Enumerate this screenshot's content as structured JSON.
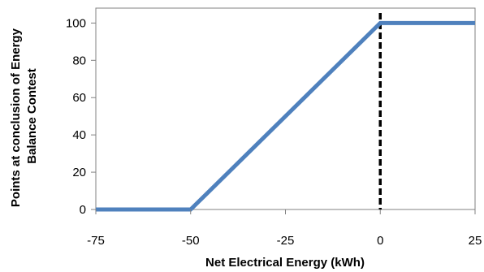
{
  "chart_data": {
    "type": "line",
    "xlabel": "Net Electrical Energy (kWh)",
    "ylabel_lines": [
      "Points at conclusion  of Energy",
      "Balance Contest"
    ],
    "xlim": [
      -75,
      25
    ],
    "ylim": [
      0,
      108
    ],
    "x_ticks": [
      -75,
      -50,
      -25,
      0,
      25
    ],
    "y_ticks": [
      0,
      20,
      40,
      60,
      80,
      100
    ],
    "x_tick_labels": [
      "-75",
      "-50",
      "-25",
      "0",
      "25"
    ],
    "y_tick_labels": [
      "0",
      "20",
      "40",
      "60",
      "80",
      "100"
    ],
    "series": [
      {
        "x": [
          -75,
          -50,
          0,
          25
        ],
        "y": [
          0,
          0,
          100,
          100
        ],
        "color": "#4F81BD"
      }
    ],
    "reference_lines": [
      {
        "orientation": "vertical",
        "x": 0,
        "style": "dashed",
        "color": "#000000"
      }
    ],
    "grid": false,
    "legend": "none"
  }
}
